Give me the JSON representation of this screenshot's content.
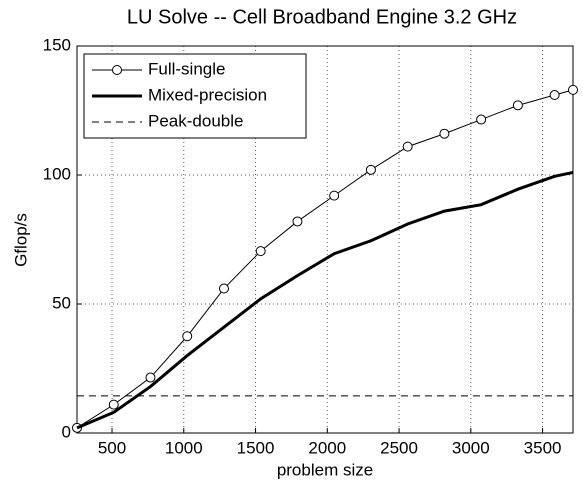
{
  "chart_data": {
    "type": "line",
    "title": "LU Solve -- Cell Broadband Engine 3.2 GHz",
    "xlabel": "problem size",
    "ylabel": "Gflop/s",
    "x": [
      256,
      512,
      768,
      1024,
      1280,
      1536,
      1792,
      2048,
      2304,
      2560,
      2816,
      3072,
      3328,
      3584,
      3712
    ],
    "series": [
      {
        "name": "Full-single",
        "color": "#000000",
        "style": "marker",
        "values": [
          2,
          11,
          21.5,
          37.5,
          56,
          70.5,
          82,
          92,
          102,
          111,
          116,
          121.5,
          127,
          131,
          133
        ]
      },
      {
        "name": "Mixed-precision",
        "color": "#000000",
        "style": "thick",
        "values": [
          2,
          8,
          18,
          30,
          41,
          52,
          61,
          69.5,
          74.5,
          81,
          86,
          88.5,
          94.5,
          99.5,
          101
        ]
      },
      {
        "name": "Peak-double",
        "color": "#000000",
        "style": "dashed",
        "values": [
          14.4,
          14.4,
          14.4,
          14.4,
          14.4,
          14.4,
          14.4,
          14.4,
          14.4,
          14.4,
          14.4,
          14.4,
          14.4,
          14.4,
          14.4
        ]
      }
    ],
    "xlim": [
      256,
      3712
    ],
    "xticks": [
      500,
      1000,
      1500,
      2000,
      2500,
      3000,
      3500
    ],
    "ylim": [
      0,
      150
    ],
    "yticks": [
      0,
      50,
      100,
      150
    ],
    "grid": true,
    "legend": "upper-left"
  }
}
